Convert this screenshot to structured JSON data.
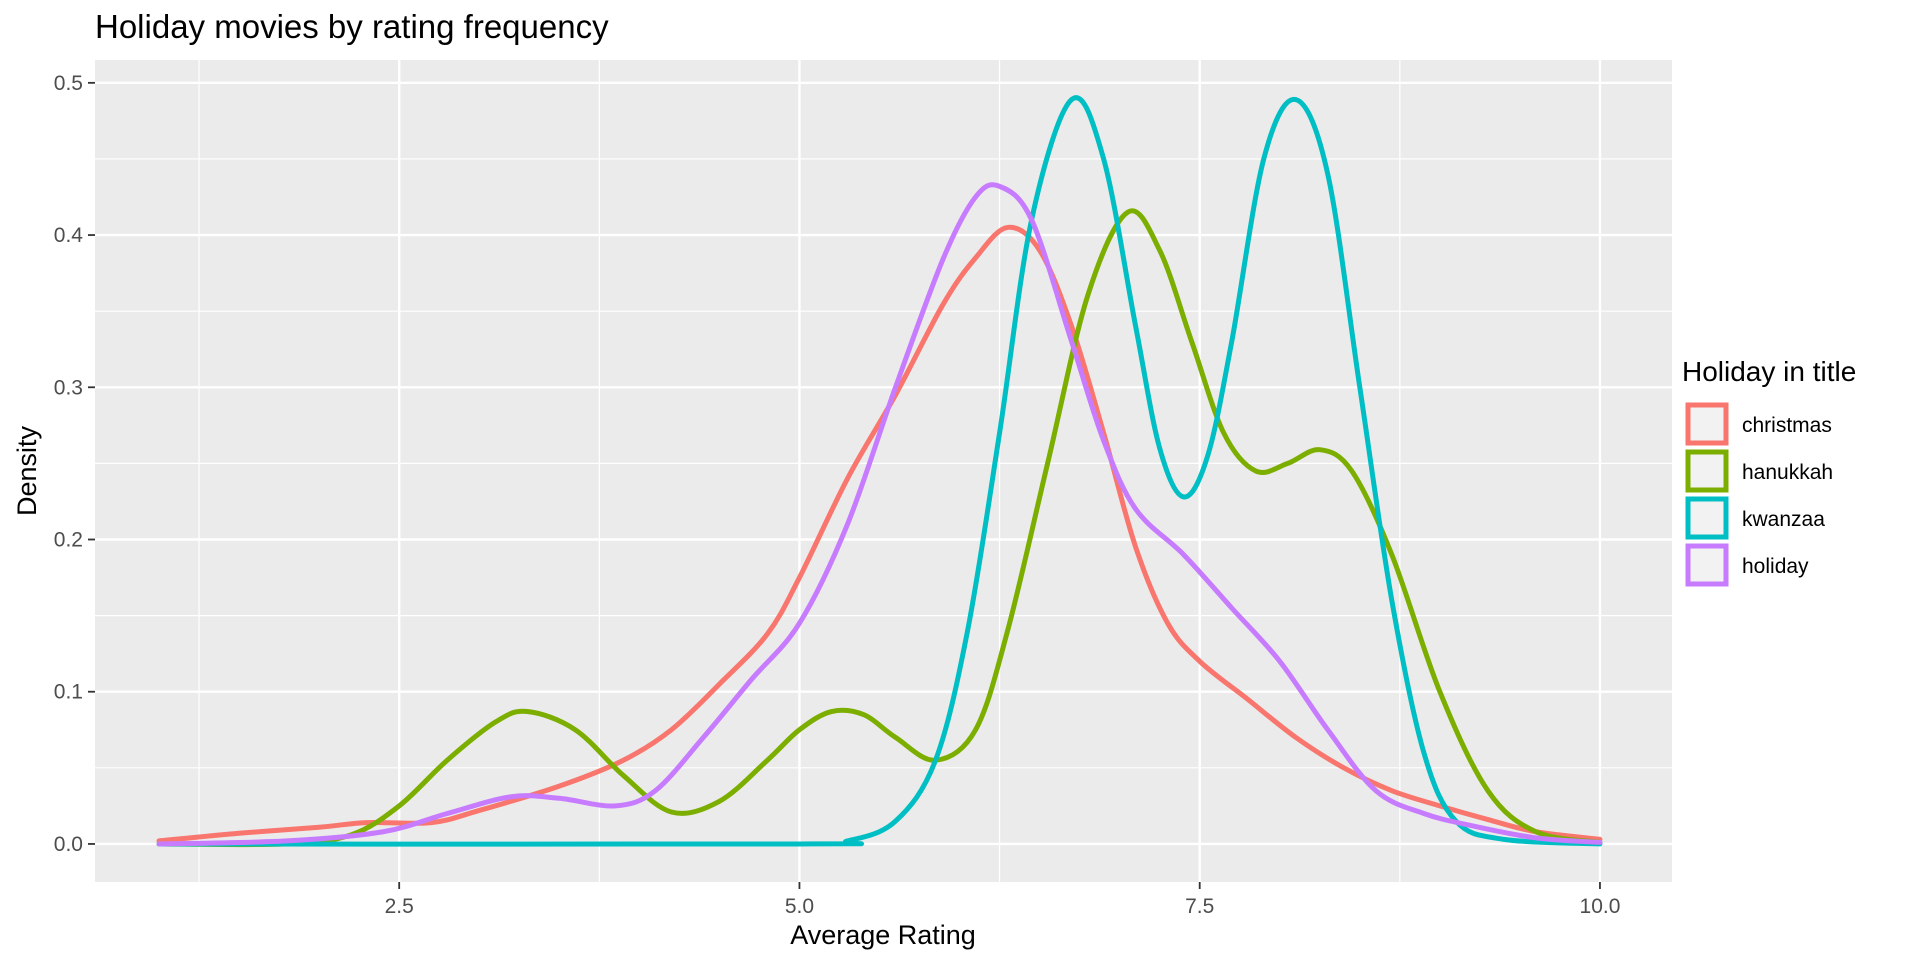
{
  "chart_data": {
    "type": "line",
    "title": "Holiday movies by rating frequency",
    "xlabel": "Average Rating",
    "ylabel": "Density",
    "xlim": [
      0.6,
      10.45
    ],
    "ylim": [
      -0.025,
      0.515
    ],
    "x_ticks": [
      2.5,
      5.0,
      7.5,
      10.0
    ],
    "x_tick_labels": [
      "2.5",
      "5.0",
      "7.5",
      "10.0"
    ],
    "y_ticks": [
      0.0,
      0.1,
      0.2,
      0.3,
      0.4,
      0.5
    ],
    "y_tick_labels": [
      "0.0",
      "0.1",
      "0.2",
      "0.3",
      "0.4",
      "0.5"
    ],
    "grid": true,
    "legend": {
      "title": "Holiday in title",
      "position": "right"
    },
    "series": [
      {
        "name": "christmas",
        "color": "#F8766D",
        "points": [
          [
            1.0,
            0.002
          ],
          [
            1.5,
            0.007
          ],
          [
            2.0,
            0.011
          ],
          [
            2.3,
            0.014
          ],
          [
            2.7,
            0.014
          ],
          [
            3.0,
            0.022
          ],
          [
            3.5,
            0.038
          ],
          [
            3.9,
            0.055
          ],
          [
            4.2,
            0.075
          ],
          [
            4.5,
            0.105
          ],
          [
            4.8,
            0.138
          ],
          [
            5.0,
            0.175
          ],
          [
            5.3,
            0.24
          ],
          [
            5.6,
            0.295
          ],
          [
            5.9,
            0.355
          ],
          [
            6.1,
            0.385
          ],
          [
            6.3,
            0.405
          ],
          [
            6.5,
            0.39
          ],
          [
            6.7,
            0.34
          ],
          [
            6.9,
            0.27
          ],
          [
            7.1,
            0.195
          ],
          [
            7.3,
            0.145
          ],
          [
            7.5,
            0.12
          ],
          [
            7.8,
            0.095
          ],
          [
            8.1,
            0.07
          ],
          [
            8.4,
            0.05
          ],
          [
            8.7,
            0.035
          ],
          [
            9.0,
            0.025
          ],
          [
            9.3,
            0.016
          ],
          [
            9.6,
            0.008
          ],
          [
            10.0,
            0.003
          ]
        ]
      },
      {
        "name": "hanukkah",
        "color": "#7CAE00",
        "points": [
          [
            1.0,
            0.0
          ],
          [
            1.8,
            0.0
          ],
          [
            2.2,
            0.006
          ],
          [
            2.5,
            0.025
          ],
          [
            2.8,
            0.055
          ],
          [
            3.1,
            0.08
          ],
          [
            3.3,
            0.087
          ],
          [
            3.6,
            0.075
          ],
          [
            3.9,
            0.045
          ],
          [
            4.2,
            0.021
          ],
          [
            4.5,
            0.028
          ],
          [
            4.8,
            0.055
          ],
          [
            5.0,
            0.075
          ],
          [
            5.2,
            0.087
          ],
          [
            5.4,
            0.085
          ],
          [
            5.6,
            0.07
          ],
          [
            5.85,
            0.055
          ],
          [
            6.1,
            0.075
          ],
          [
            6.3,
            0.14
          ],
          [
            6.55,
            0.25
          ],
          [
            6.8,
            0.36
          ],
          [
            7.05,
            0.415
          ],
          [
            7.25,
            0.39
          ],
          [
            7.45,
            0.33
          ],
          [
            7.65,
            0.27
          ],
          [
            7.85,
            0.245
          ],
          [
            8.05,
            0.25
          ],
          [
            8.25,
            0.259
          ],
          [
            8.45,
            0.245
          ],
          [
            8.7,
            0.19
          ],
          [
            9.0,
            0.1
          ],
          [
            9.3,
            0.035
          ],
          [
            9.6,
            0.008
          ],
          [
            10.0,
            0.001
          ]
        ]
      },
      {
        "name": "kwanzaa",
        "color": "#00BFC4",
        "points": [
          [
            1.0,
            0.0
          ],
          [
            5.0,
            0.0
          ],
          [
            5.3,
            0.002
          ],
          [
            5.6,
            0.015
          ],
          [
            5.85,
            0.055
          ],
          [
            6.05,
            0.14
          ],
          [
            6.25,
            0.27
          ],
          [
            6.45,
            0.41
          ],
          [
            6.7,
            0.489
          ],
          [
            6.9,
            0.45
          ],
          [
            7.1,
            0.34
          ],
          [
            7.25,
            0.26
          ],
          [
            7.4,
            0.228
          ],
          [
            7.55,
            0.255
          ],
          [
            7.7,
            0.33
          ],
          [
            7.9,
            0.45
          ],
          [
            8.1,
            0.489
          ],
          [
            8.3,
            0.44
          ],
          [
            8.5,
            0.3
          ],
          [
            8.7,
            0.16
          ],
          [
            8.9,
            0.06
          ],
          [
            9.1,
            0.015
          ],
          [
            9.4,
            0.003
          ],
          [
            10.0,
            0.0
          ]
        ]
      },
      {
        "name": "holiday",
        "color": "#C77CFF",
        "points": [
          [
            1.0,
            0.0
          ],
          [
            1.8,
            0.002
          ],
          [
            2.4,
            0.008
          ],
          [
            2.8,
            0.02
          ],
          [
            3.2,
            0.031
          ],
          [
            3.5,
            0.03
          ],
          [
            3.85,
            0.025
          ],
          [
            4.1,
            0.035
          ],
          [
            4.4,
            0.07
          ],
          [
            4.7,
            0.108
          ],
          [
            5.0,
            0.145
          ],
          [
            5.3,
            0.21
          ],
          [
            5.6,
            0.3
          ],
          [
            5.9,
            0.385
          ],
          [
            6.1,
            0.425
          ],
          [
            6.25,
            0.432
          ],
          [
            6.45,
            0.41
          ],
          [
            6.7,
            0.33
          ],
          [
            6.9,
            0.265
          ],
          [
            7.1,
            0.22
          ],
          [
            7.4,
            0.19
          ],
          [
            7.7,
            0.155
          ],
          [
            8.0,
            0.12
          ],
          [
            8.3,
            0.075
          ],
          [
            8.6,
            0.035
          ],
          [
            8.9,
            0.02
          ],
          [
            9.2,
            0.012
          ],
          [
            9.6,
            0.004
          ],
          [
            10.0,
            0.001
          ]
        ]
      }
    ]
  }
}
